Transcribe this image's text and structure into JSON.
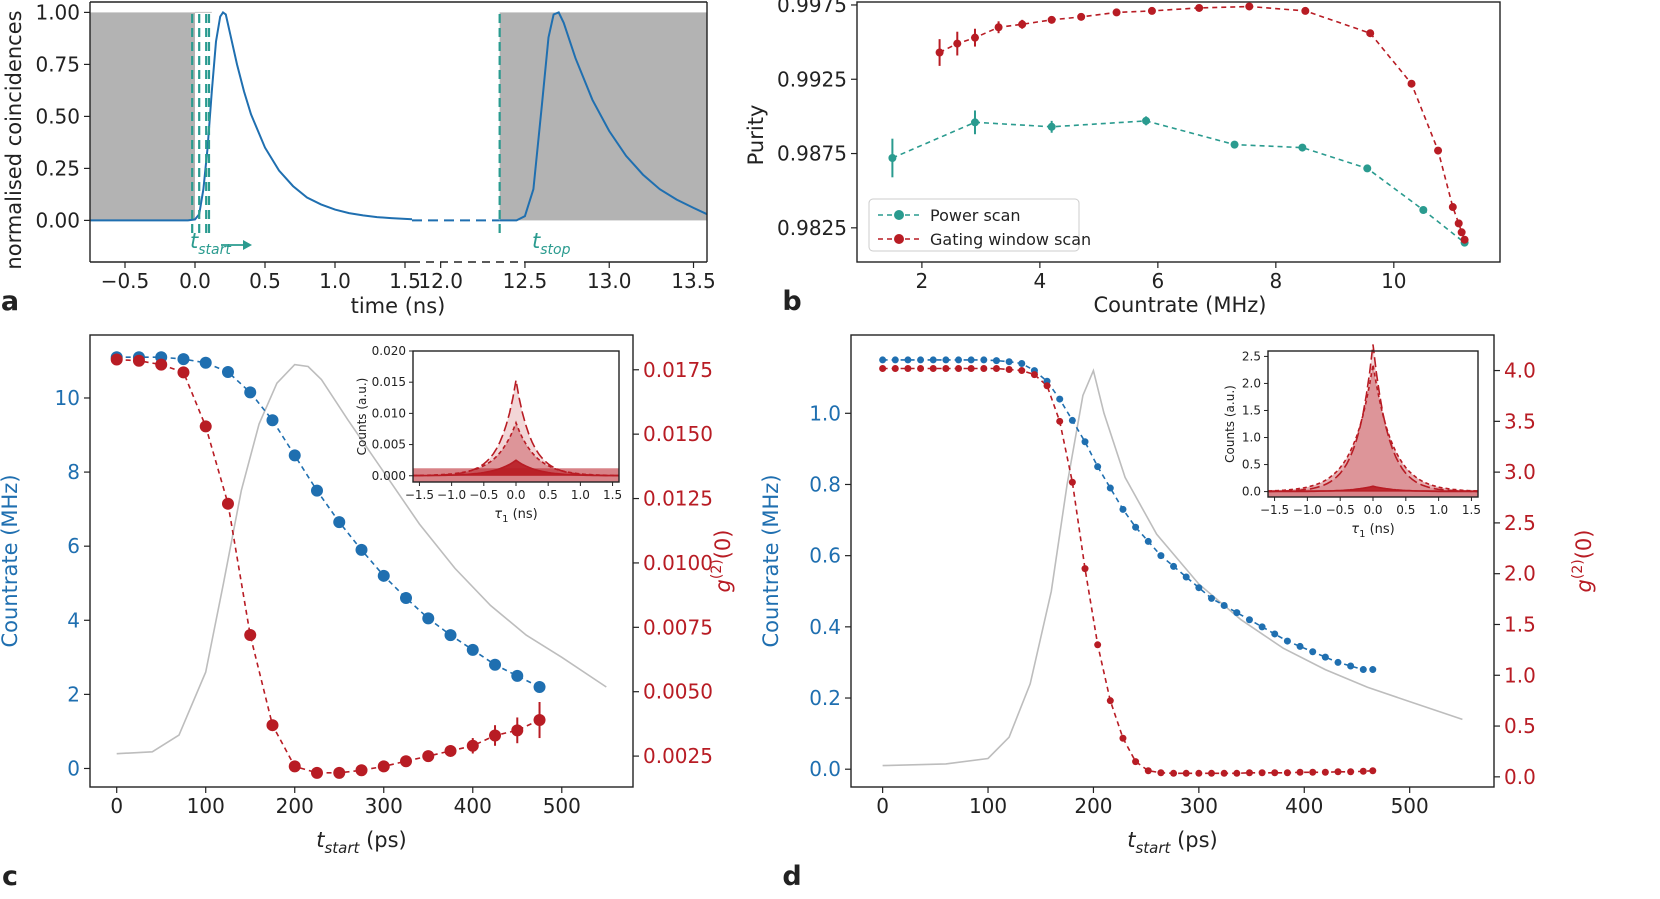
{
  "colors": {
    "blue": "#1f6fb0",
    "red": "#b81c24",
    "teal": "#2a9b8f",
    "gray": "#bdbdbd",
    "shade": "#b3b3b3",
    "axis": "#222222"
  },
  "chart_data": [
    {
      "panel": "a",
      "type": "line",
      "ylabel": "normalised coincidences",
      "xlabel": "time (ns)",
      "ylim": [
        -0.2,
        1.05
      ],
      "yticks": [
        "0.00",
        "0.25",
        "0.50",
        "0.75",
        "1.00"
      ],
      "xticks_left": [
        "−0.5",
        "0.0",
        "0.5",
        "1.0",
        "1.5"
      ],
      "xticks_right": [
        "12.0",
        "12.5",
        "13.0",
        "13.5"
      ],
      "xlim_left": [
        -0.75,
        1.55
      ],
      "xlim_right": [
        11.83,
        13.58
      ],
      "t_start_markers_ns": [
        -0.02,
        0.03,
        0.08,
        0.1
      ],
      "t_stop_marker_ns": 12.35,
      "t_start_label": "start",
      "t_stop_label": "stop",
      "t_letter": "t",
      "series_left": [
        [
          -0.75,
          0.0
        ],
        [
          -0.05,
          0.0
        ],
        [
          0.0,
          0.005
        ],
        [
          0.03,
          0.03
        ],
        [
          0.06,
          0.15
        ],
        [
          0.09,
          0.35
        ],
        [
          0.12,
          0.62
        ],
        [
          0.15,
          0.86
        ],
        [
          0.18,
          0.98
        ],
        [
          0.2,
          1.0
        ],
        [
          0.22,
          0.99
        ],
        [
          0.25,
          0.9
        ],
        [
          0.3,
          0.75
        ],
        [
          0.35,
          0.62
        ],
        [
          0.4,
          0.51
        ],
        [
          0.5,
          0.35
        ],
        [
          0.6,
          0.24
        ],
        [
          0.7,
          0.165
        ],
        [
          0.8,
          0.11
        ],
        [
          0.9,
          0.077
        ],
        [
          1.0,
          0.052
        ],
        [
          1.1,
          0.035
        ],
        [
          1.2,
          0.024
        ],
        [
          1.3,
          0.016
        ],
        [
          1.4,
          0.011
        ],
        [
          1.55,
          0.006
        ]
      ],
      "series_right": [
        [
          12.35,
          0.0
        ],
        [
          12.45,
          0.0
        ],
        [
          12.5,
          0.02
        ],
        [
          12.55,
          0.15
        ],
        [
          12.6,
          0.55
        ],
        [
          12.64,
          0.88
        ],
        [
          12.67,
          0.99
        ],
        [
          12.7,
          1.0
        ],
        [
          12.73,
          0.95
        ],
        [
          12.8,
          0.78
        ],
        [
          12.9,
          0.58
        ],
        [
          13.0,
          0.43
        ],
        [
          13.1,
          0.31
        ],
        [
          13.2,
          0.22
        ],
        [
          13.3,
          0.15
        ],
        [
          13.4,
          0.1
        ],
        [
          13.5,
          0.06
        ],
        [
          13.58,
          0.03
        ]
      ],
      "shaded_regions": [
        [
          -0.75,
          0.0
        ],
        [
          12.35,
          13.58
        ]
      ]
    },
    {
      "panel": "b",
      "type": "scatter",
      "ylabel": "Purity",
      "xlabel": "Countrate (MHz)",
      "xlim": [
        0.9,
        11.8
      ],
      "ylim": [
        0.9802,
        0.9977
      ],
      "xticks": [
        "2",
        "4",
        "6",
        "8",
        "10"
      ],
      "yticks": [
        "0.9825",
        "0.9875",
        "0.9925",
        "0.9975"
      ],
      "series": [
        {
          "name": "Power scan",
          "x": [
            1.5,
            2.9,
            4.2,
            5.8,
            7.3,
            8.45,
            9.55,
            10.5,
            11.2
          ],
          "y": [
            0.9872,
            0.9896,
            0.9893,
            0.9897,
            0.9881,
            0.9879,
            0.9865,
            0.9837,
            0.9815
          ],
          "err": [
            0.0013,
            0.0008,
            0.0004,
            0.0003,
            0.0002,
            0.0002,
            0.0002,
            0.0002,
            0.0002
          ]
        },
        {
          "name": "Gating window scan",
          "x": [
            2.3,
            2.6,
            2.9,
            3.3,
            3.7,
            4.2,
            4.7,
            5.3,
            5.9,
            6.7,
            7.55,
            8.5,
            9.6,
            10.3,
            10.75,
            11.0,
            11.1,
            11.15,
            11.2
          ],
          "y": [
            0.9943,
            0.9949,
            0.9953,
            0.996,
            0.9962,
            0.9965,
            0.9967,
            0.997,
            0.9971,
            0.9973,
            0.9974,
            0.9971,
            0.9956,
            0.9922,
            0.9877,
            0.9839,
            0.9828,
            0.9822,
            0.9817
          ],
          "err": [
            0.0009,
            0.0008,
            0.0006,
            0.0004,
            0.0003,
            0.0002,
            0.0002,
            0.0002,
            0.0002,
            0.0002,
            0.0002,
            0.0002,
            0.0002,
            0.0002,
            0.0002,
            0.0002,
            0.0002,
            0.0002,
            0.0002
          ]
        }
      ]
    },
    {
      "panel": "c",
      "type": "line",
      "xlabel_sym": "t",
      "xlabel_sub": "start",
      "xlabel_unit": "(ps)",
      "ylabel_left": "Countrate (MHz)",
      "ylabel_right_g": "g",
      "ylabel_right_sup": "(2)",
      "ylabel_right_tail": "(0)",
      "xlim": [
        -30,
        580
      ],
      "ylim_left": [
        -0.5,
        11.7
      ],
      "ylim_right": [
        0.0013,
        0.01885
      ],
      "xticks": [
        "0",
        "100",
        "200",
        "300",
        "400",
        "500"
      ],
      "yticks_left": [
        "0",
        "2",
        "4",
        "6",
        "8",
        "10"
      ],
      "yticks_right": [
        "0.0025",
        "0.0050",
        "0.0075",
        "0.0100",
        "0.0125",
        "0.0150",
        "0.0175"
      ],
      "t_start_ps": [
        0,
        25,
        50,
        75,
        100,
        125,
        150,
        175,
        200,
        225,
        250,
        275,
        300,
        325,
        350,
        375,
        400,
        425,
        450,
        475
      ],
      "countrate": [
        11.1,
        11.1,
        11.1,
        11.05,
        10.95,
        10.7,
        10.15,
        9.4,
        8.45,
        7.5,
        6.65,
        5.9,
        5.2,
        4.6,
        4.05,
        3.6,
        3.2,
        2.8,
        2.5,
        2.2
      ],
      "g2": [
        0.0179,
        0.01785,
        0.0177,
        0.0174,
        0.0153,
        0.0123,
        0.0072,
        0.0037,
        0.0021,
        0.00185,
        0.00185,
        0.00195,
        0.0021,
        0.0023,
        0.0025,
        0.0027,
        0.0029,
        0.0033,
        0.0035,
        0.0039
      ],
      "g2_err": [
        0.0001,
        0.0001,
        0.0001,
        0.0001,
        0.0001,
        0.0001,
        0.0001,
        0.0001,
        0.0001,
        0.0001,
        0.0001,
        0.0001,
        0.0001,
        0.0001,
        0.0001,
        0.0002,
        0.0003,
        0.0004,
        0.0005,
        0.0007
      ],
      "trace": [
        [
          0,
          0.4
        ],
        [
          40,
          0.45
        ],
        [
          70,
          0.9
        ],
        [
          100,
          2.6
        ],
        [
          120,
          5.0
        ],
        [
          140,
          7.5
        ],
        [
          160,
          9.3
        ],
        [
          180,
          10.4
        ],
        [
          200,
          10.9
        ],
        [
          215,
          10.85
        ],
        [
          230,
          10.5
        ],
        [
          260,
          9.4
        ],
        [
          300,
          8.0
        ],
        [
          340,
          6.6
        ],
        [
          380,
          5.4
        ],
        [
          420,
          4.4
        ],
        [
          460,
          3.6
        ],
        [
          500,
          3.0
        ],
        [
          550,
          2.2
        ]
      ],
      "inset": {
        "xlim": [
          -1.6,
          1.6
        ],
        "ylim": [
          -0.001,
          0.02
        ],
        "xticks": [
          "−1.5",
          "−1.0",
          "−0.5",
          "0.0",
          "0.5",
          "1.0",
          "1.5"
        ],
        "yticks": [
          "0.000",
          "0.005",
          "0.010",
          "0.015",
          "0.020"
        ],
        "xlabel_sym": "τ",
        "xlabel_sub": "1",
        "xlabel_unit": "(ns)",
        "ylabel": "Counts (a.u.)",
        "peak_heights": [
          0.0153,
          0.0085,
          0.0025
        ]
      }
    },
    {
      "panel": "d",
      "type": "line",
      "xlabel_sym": "t",
      "xlabel_sub": "start",
      "xlabel_unit": "(ps)",
      "ylabel_left": "Countrate (MHz)",
      "ylabel_right_g": "g",
      "ylabel_right_sup": "(2)",
      "ylabel_right_tail": "(0)",
      "xlim": [
        -30,
        580
      ],
      "ylim_left": [
        -0.05,
        1.22
      ],
      "ylim_right": [
        -0.1,
        4.35
      ],
      "xticks": [
        "0",
        "100",
        "200",
        "300",
        "400",
        "500"
      ],
      "yticks_left": [
        "0.0",
        "0.2",
        "0.4",
        "0.6",
        "0.8",
        "1.0"
      ],
      "yticks_right": [
        "0.0",
        "0.5",
        "1.0",
        "1.5",
        "2.0",
        "2.5",
        "3.0",
        "3.5",
        "4.0"
      ],
      "t_start_ps": [
        0,
        12,
        24,
        36,
        48,
        60,
        72,
        84,
        96,
        108,
        120,
        132,
        144,
        156,
        168,
        180,
        192,
        204,
        216,
        228,
        240,
        252,
        264,
        276,
        288,
        300,
        312,
        324,
        336,
        348,
        360,
        372,
        384,
        396,
        408,
        420,
        432,
        444,
        456,
        465
      ],
      "countrate": [
        1.15,
        1.15,
        1.15,
        1.15,
        1.15,
        1.15,
        1.15,
        1.15,
        1.15,
        1.148,
        1.145,
        1.14,
        1.12,
        1.09,
        1.04,
        0.98,
        0.92,
        0.85,
        0.79,
        0.73,
        0.68,
        0.64,
        0.6,
        0.57,
        0.54,
        0.51,
        0.48,
        0.46,
        0.44,
        0.42,
        0.4,
        0.38,
        0.36,
        0.345,
        0.33,
        0.315,
        0.3,
        0.29,
        0.28,
        0.28
      ],
      "g2": [
        4.02,
        4.02,
        4.02,
        4.02,
        4.02,
        4.02,
        4.02,
        4.02,
        4.02,
        4.02,
        4.01,
        4.0,
        3.96,
        3.85,
        3.5,
        2.9,
        2.05,
        1.3,
        0.75,
        0.38,
        0.15,
        0.06,
        0.04,
        0.035,
        0.035,
        0.035,
        0.035,
        0.035,
        0.035,
        0.04,
        0.04,
        0.04,
        0.04,
        0.045,
        0.045,
        0.045,
        0.05,
        0.05,
        0.055,
        0.06
      ],
      "trace": [
        [
          0,
          0.01
        ],
        [
          60,
          0.015
        ],
        [
          100,
          0.03
        ],
        [
          120,
          0.09
        ],
        [
          140,
          0.24
        ],
        [
          160,
          0.5
        ],
        [
          175,
          0.8
        ],
        [
          190,
          1.05
        ],
        [
          200,
          1.12
        ],
        [
          210,
          1.0
        ],
        [
          230,
          0.82
        ],
        [
          260,
          0.66
        ],
        [
          300,
          0.52
        ],
        [
          340,
          0.42
        ],
        [
          380,
          0.34
        ],
        [
          420,
          0.28
        ],
        [
          460,
          0.23
        ],
        [
          500,
          0.19
        ],
        [
          550,
          0.14
        ]
      ],
      "inset": {
        "xlim": [
          -1.6,
          1.6
        ],
        "ylim": [
          -0.1,
          2.6
        ],
        "xticks": [
          "−1.5",
          "−1.0",
          "−0.5",
          "0.0",
          "0.5",
          "1.0",
          "1.5"
        ],
        "yticks": [
          "0.0",
          "0.5",
          "1.0",
          "1.5",
          "2.0",
          "2.5"
        ],
        "xlabel_sym": "τ",
        "xlabel_sub": "1",
        "xlabel_unit": "(ns)",
        "ylabel": "Counts (a.u.)",
        "peak_heights": [
          2.72,
          2.35,
          0.1
        ]
      }
    }
  ],
  "panel_labels": [
    "a",
    "b",
    "c",
    "d"
  ]
}
